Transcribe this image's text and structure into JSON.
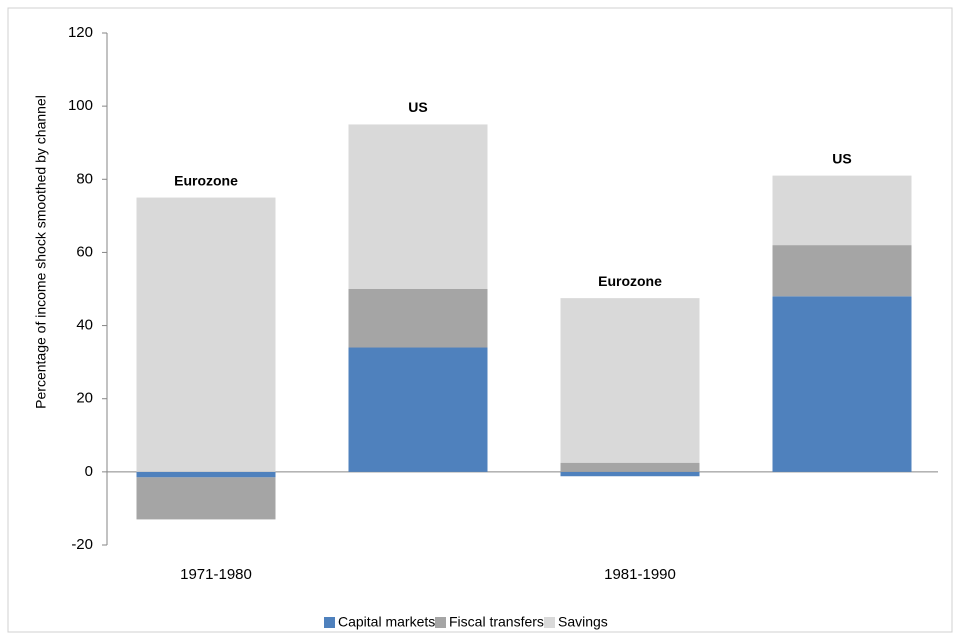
{
  "chart_data": {
    "type": "stacked_bar",
    "y_label": "Percentage of income shock smoothed by channel",
    "categories": [
      "1971-1980",
      null,
      "1981-1990",
      null
    ],
    "bar_labels": [
      "Eurozone",
      "US",
      "Eurozone",
      "US"
    ],
    "series": [
      {
        "name": "Capital markets",
        "color": "#4f81bd",
        "values": [
          -1.5,
          34,
          -1.2,
          48
        ]
      },
      {
        "name": "Fiscal transfers",
        "color": "#a5a5a5",
        "values": [
          -11.5,
          16,
          2.5,
          14
        ]
      },
      {
        "name": "Savings",
        "color": "#d9d9d9",
        "values": [
          75,
          45,
          45,
          19
        ]
      }
    ],
    "ylim": [
      -20,
      120
    ],
    "yticks": [
      -20,
      0,
      20,
      40,
      60,
      80,
      100,
      120
    ],
    "grid": false,
    "legend": "bottom"
  }
}
